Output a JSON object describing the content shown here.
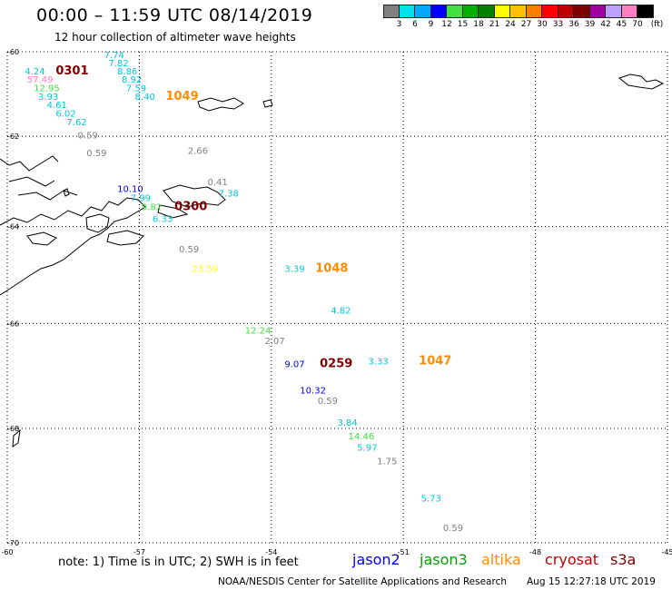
{
  "title": "00:00 – 11:59 UTC 08/14/2019",
  "subtitle": "12 hour collection of altimeter wave heights",
  "legend": {
    "colors": [
      "#808080",
      "#00e0e8",
      "#00a8ff",
      "#0000ff",
      "#40e040",
      "#00b000",
      "#008000",
      "#ffff00",
      "#ffc000",
      "#ff8000",
      "#ff0000",
      "#c00000",
      "#800000",
      "#a000a0",
      "#c0a0ff",
      "#ff80c0",
      "#000000"
    ],
    "labels": [
      "3",
      "6",
      "9",
      "12",
      "15",
      "18",
      "21",
      "24",
      "27",
      "30",
      "33",
      "36",
      "39",
      "42",
      "45",
      "70",
      "(ft)"
    ]
  },
  "axes": {
    "lat_labels": [
      "-60",
      "-62",
      "-64",
      "-66",
      "-68",
      "-70"
    ],
    "lon_labels": [
      "-60",
      "-57",
      "-54",
      "-51",
      "-48",
      "-45"
    ]
  },
  "chart_data": {
    "type": "scatter",
    "map_extent": {
      "lon": [
        -60,
        -45
      ],
      "lat": [
        -70,
        -60
      ]
    },
    "observations": [
      {
        "text": "7.74",
        "color": "#00c8e0",
        "lon": -57.8,
        "lat": -60.15
      },
      {
        "text": "7.82",
        "color": "#00c8e0",
        "lon": -57.7,
        "lat": -60.35
      },
      {
        "text": "8.86",
        "color": "#00c8e0",
        "lon": -57.5,
        "lat": -60.55
      },
      {
        "text": "8.92",
        "color": "#00c8e0",
        "lon": -57.4,
        "lat": -60.75
      },
      {
        "text": "7.59",
        "color": "#00c8e0",
        "lon": -57.3,
        "lat": -60.95
      },
      {
        "text": "8.40",
        "color": "#00c8e0",
        "lon": -57.1,
        "lat": -61.15
      },
      {
        "text": "4.24",
        "color": "#00c8e0",
        "lon": -59.6,
        "lat": -60.55
      },
      {
        "text": "57.49",
        "color": "#ff80c0",
        "lon": -59.55,
        "lat": -60.75
      },
      {
        "text": "12.95",
        "color": "#40e040",
        "lon": -59.4,
        "lat": -60.95
      },
      {
        "text": "3.93",
        "color": "#00c8e0",
        "lon": -59.3,
        "lat": -61.15
      },
      {
        "text": "4.61",
        "color": "#00c8e0",
        "lon": -59.1,
        "lat": -61.35
      },
      {
        "text": "6.02",
        "color": "#00c8e0",
        "lon": -58.9,
        "lat": -61.55
      },
      {
        "text": "7.62",
        "color": "#00c8e0",
        "lon": -58.65,
        "lat": -61.75
      },
      {
        "text": "0.59",
        "color": "#808080",
        "lon": -58.4,
        "lat": -62.05
      },
      {
        "text": "0.59",
        "color": "#808080",
        "lon": -58.2,
        "lat": -62.45
      },
      {
        "text": "2.66",
        "color": "#808080",
        "lon": -55.9,
        "lat": -62.4
      },
      {
        "text": "0.41",
        "color": "#808080",
        "lon": -55.45,
        "lat": -63.1
      },
      {
        "text": "7.38",
        "color": "#00c8e0",
        "lon": -55.2,
        "lat": -63.35
      },
      {
        "text": "10.10",
        "color": "#0000ff",
        "lon": -57.5,
        "lat": -63.25
      },
      {
        "text": "7.99",
        "color": "#00c8e0",
        "lon": -57.2,
        "lat": -63.45
      },
      {
        "text": "9.82",
        "color": "#40e040",
        "lon": -56.95,
        "lat": -63.65
      },
      {
        "text": "6.33",
        "color": "#00c8e0",
        "lon": -56.7,
        "lat": -63.9
      },
      {
        "text": "0.59",
        "color": "#808080",
        "lon": -56.1,
        "lat": -64.55
      },
      {
        "text": "23.59",
        "color": "#ffff00",
        "lon": -55.8,
        "lat": -64.95
      },
      {
        "text": "3.39",
        "color": "#00c8e0",
        "lon": -53.7,
        "lat": -64.95
      },
      {
        "text": "4.82",
        "color": "#00c8e0",
        "lon": -52.65,
        "lat": -65.8
      },
      {
        "text": "12.24",
        "color": "#40e040",
        "lon": -54.6,
        "lat": -66.2
      },
      {
        "text": "2.07",
        "color": "#808080",
        "lon": -54.15,
        "lat": -66.4
      },
      {
        "text": "9.07",
        "color": "#0000ff",
        "lon": -53.7,
        "lat": -66.85
      },
      {
        "text": "3.33",
        "color": "#00c8e0",
        "lon": -51.8,
        "lat": -66.8
      },
      {
        "text": "10.32",
        "color": "#0000ff",
        "lon": -53.35,
        "lat": -67.35
      },
      {
        "text": "0.59",
        "color": "#808080",
        "lon": -52.95,
        "lat": -67.55
      },
      {
        "text": "3.84",
        "color": "#00c8e0",
        "lon": -52.5,
        "lat": -67.95
      },
      {
        "text": "14.46",
        "color": "#40e040",
        "lon": -52.25,
        "lat": -68.2
      },
      {
        "text": "5.97",
        "color": "#00c8e0",
        "lon": -52.05,
        "lat": -68.4
      },
      {
        "text": "1.75",
        "color": "#808080",
        "lon": -51.6,
        "lat": -68.65
      },
      {
        "text": "5.73",
        "color": "#00c8e0",
        "lon": -50.6,
        "lat": -69.3
      },
      {
        "text": "0.59",
        "color": "#808080",
        "lon": -50.1,
        "lat": -69.8
      }
    ],
    "time_labels": [
      {
        "text": "0301",
        "color": "#800000",
        "lon": -58.9,
        "lat": -60.55
      },
      {
        "text": "1049",
        "color": "#ff8c00",
        "lon": -56.4,
        "lat": -61.15
      },
      {
        "text": "0300",
        "color": "#800000",
        "lon": -56.2,
        "lat": -63.65
      },
      {
        "text": "1048",
        "color": "#ff8c00",
        "lon": -53.0,
        "lat": -64.95
      },
      {
        "text": "0259",
        "color": "#800000",
        "lon": -52.9,
        "lat": -66.85
      },
      {
        "text": "1047",
        "color": "#ff8c00",
        "lon": -50.65,
        "lat": -66.8
      }
    ]
  },
  "note": "note: 1) Time is in UTC; 2) SWH is in feet",
  "satellites": [
    {
      "name": "jason2",
      "color": "#0000ff"
    },
    {
      "name": "jason3",
      "color": "#00a000"
    },
    {
      "name": "altika",
      "color": "#ff8c00"
    },
    {
      "name": "cryosat",
      "color": "#c00000"
    },
    {
      "name": "s3a",
      "color": "#800000"
    }
  ],
  "footer": "NOAA/NESDIS Center for Satellite Applications and Research",
  "footer_timestamp": "Aug 15 12:27:18 UTC 2019"
}
